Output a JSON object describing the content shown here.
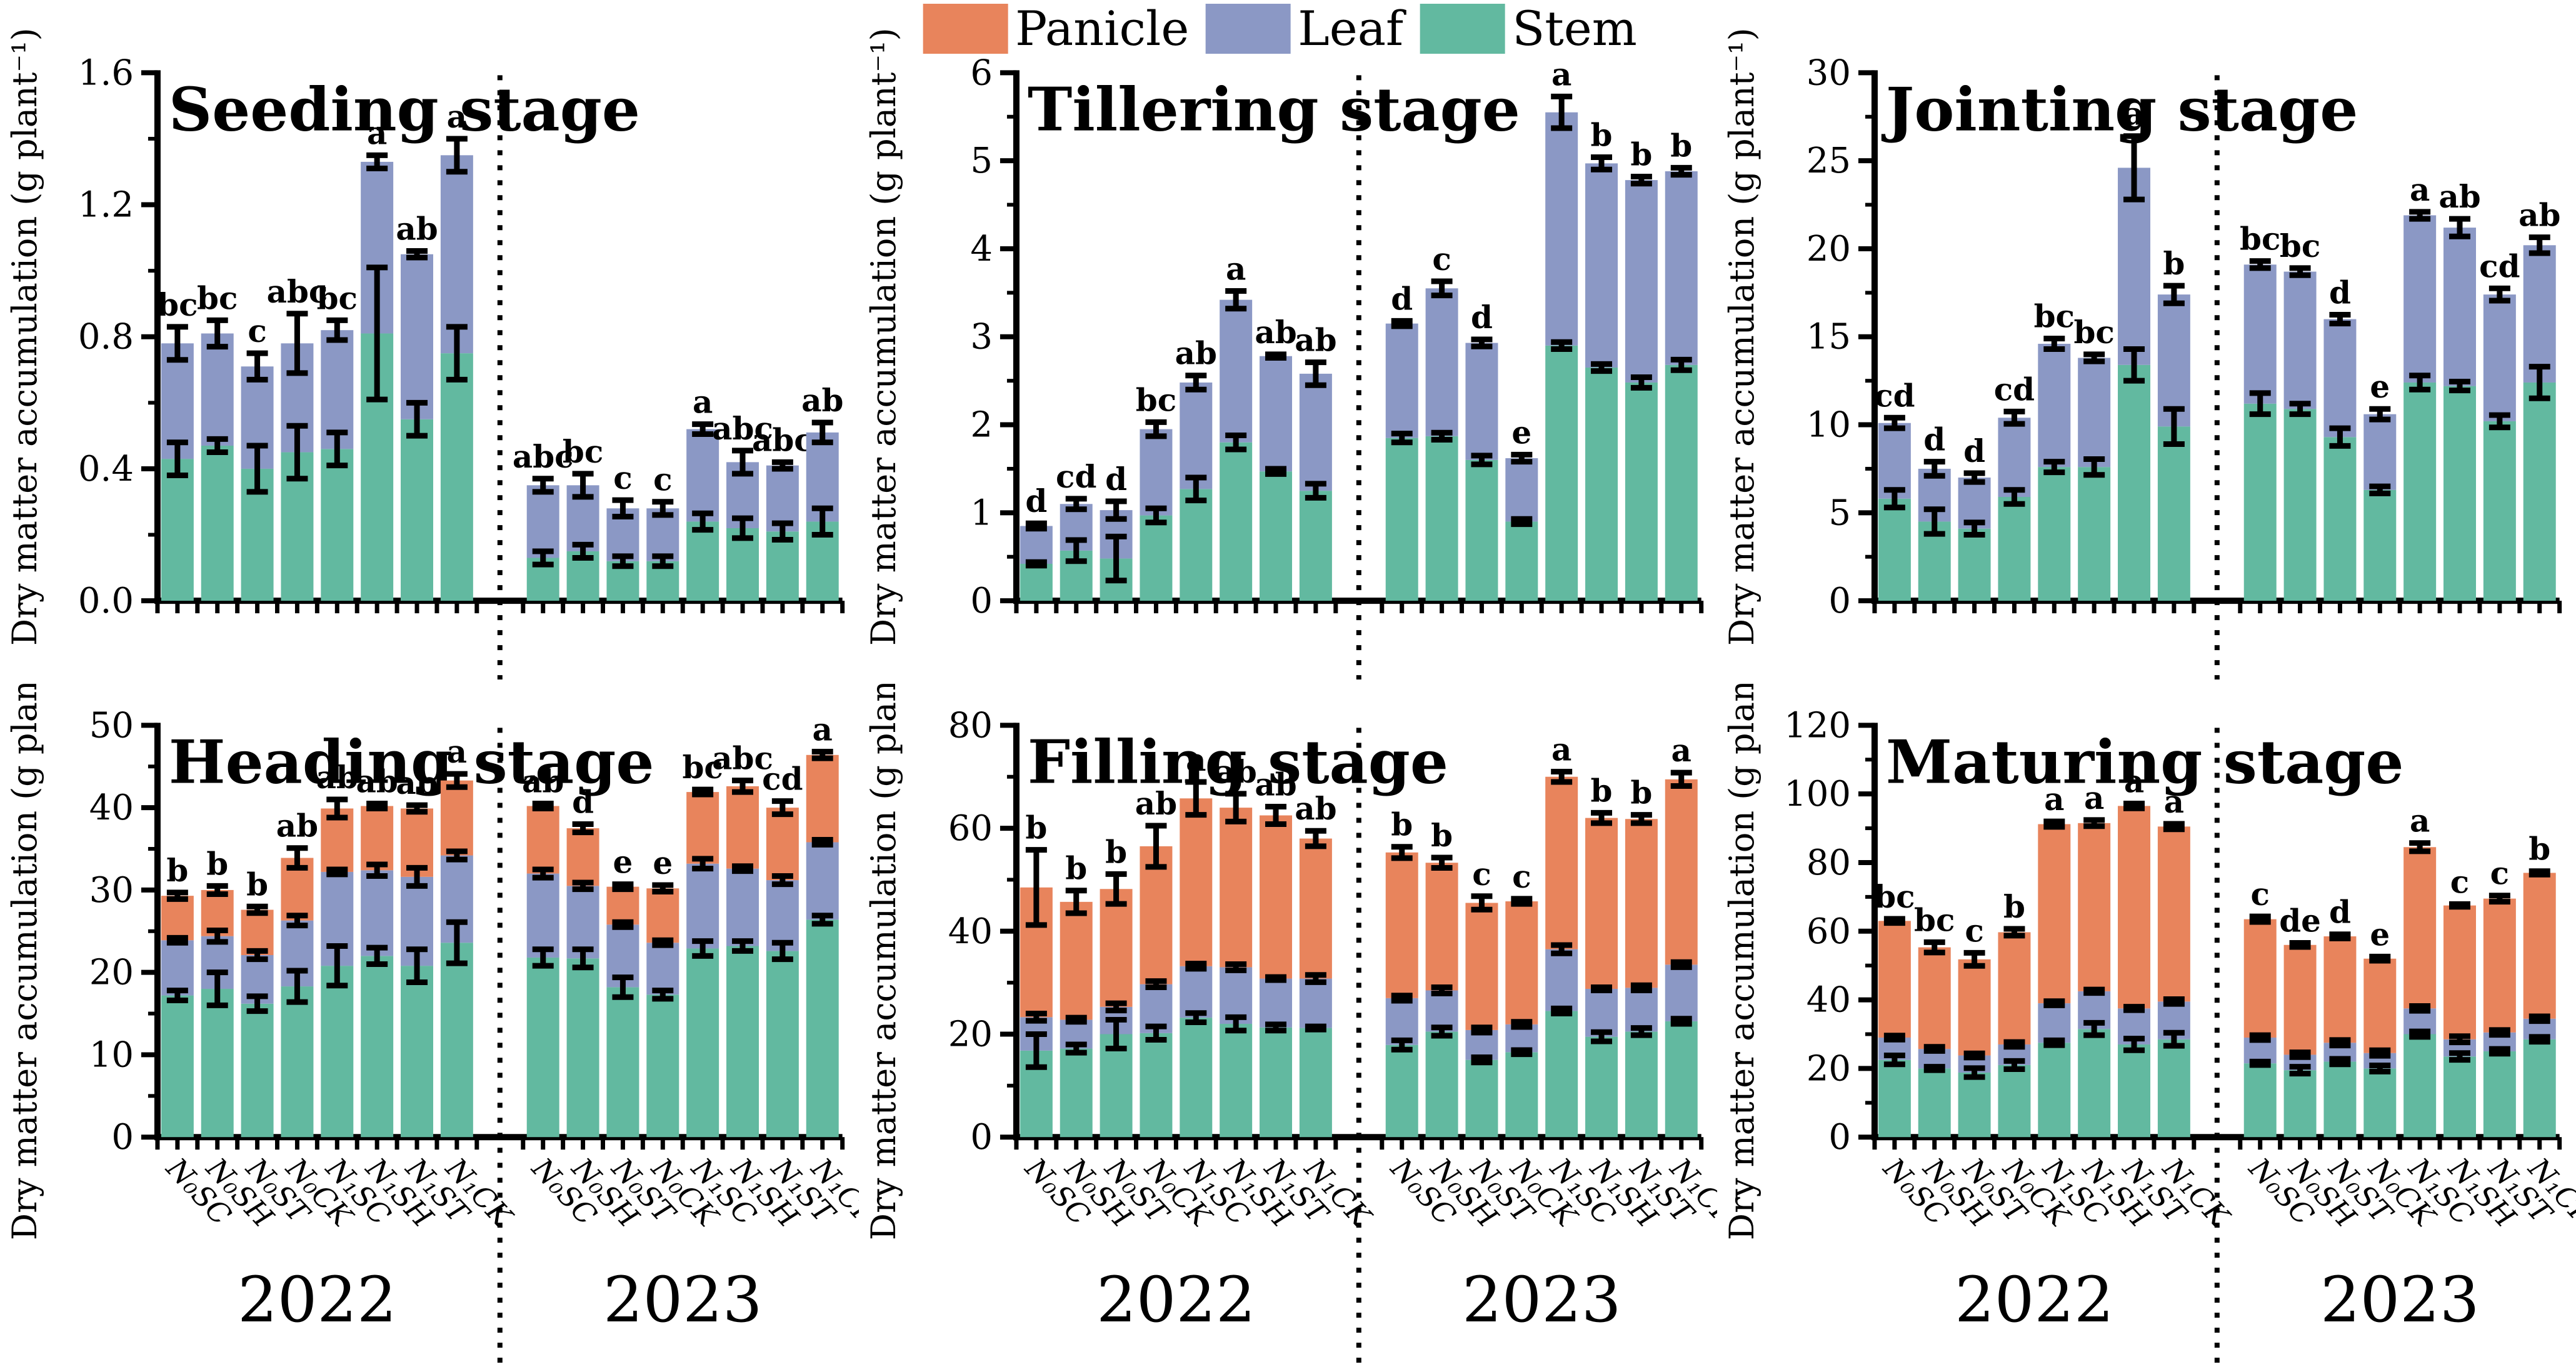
{
  "legend": {
    "items": [
      {
        "name": "panicle",
        "label": "Panicle",
        "color": "#E8845C"
      },
      {
        "name": "leaf",
        "label": "Leaf",
        "color": "#8B98C5"
      },
      {
        "name": "stem",
        "label": "Stem",
        "color": "#62B9A0"
      }
    ]
  },
  "ylabel": "Dry matter accumulation (g plant⁻¹)",
  "x_labels": [
    "N₀SC",
    "N₀SH",
    "N₀ST",
    "N₀CK",
    "N₁SC",
    "N₁SH",
    "N₁ST",
    "N₁CK"
  ],
  "years": [
    "2022",
    "2023"
  ],
  "error_bar_color": "#000000",
  "bar_fields": [
    "stem",
    "leaf",
    "panicle",
    "letter",
    "err_stem",
    "err_leaf",
    "err_total"
  ],
  "chart_data": [
    {
      "type": "stacked-bar",
      "title": "Seeding stage",
      "ylim": [
        0,
        1.6
      ],
      "ytick_major": 0.4,
      "ytick_minor": 0.2,
      "ydecimals": 1,
      "groups": [
        {
          "year": "2022",
          "bars": [
            [
              0.43,
              0.35,
              0,
              "bc",
              0.05,
              0,
              0.05
            ],
            [
              0.47,
              0.34,
              0,
              "bc",
              0.02,
              0,
              0.04
            ],
            [
              0.4,
              0.31,
              0,
              "c",
              0.07,
              0,
              0.04
            ],
            [
              0.45,
              0.33,
              0,
              "abc",
              0.08,
              0,
              0.09
            ],
            [
              0.46,
              0.36,
              0,
              "bc",
              0.05,
              0,
              0.03
            ],
            [
              0.81,
              0.52,
              0,
              "a",
              0.2,
              0,
              0.02
            ],
            [
              0.55,
              0.5,
              0,
              "ab",
              0.05,
              0,
              0.01
            ],
            [
              0.75,
              0.6,
              0,
              "a",
              0.08,
              0,
              0.05
            ]
          ]
        },
        {
          "year": "2023",
          "bars": [
            [
              0.13,
              0.22,
              0,
              "abc",
              0.02,
              0,
              0.02
            ],
            [
              0.15,
              0.2,
              0,
              "bc",
              0.02,
              0,
              0.035
            ],
            [
              0.12,
              0.16,
              0,
              "c",
              0.015,
              0,
              0.025
            ],
            [
              0.12,
              0.16,
              0,
              "c",
              0.015,
              0,
              0.02
            ],
            [
              0.24,
              0.28,
              0,
              "a",
              0.025,
              0,
              0.015
            ],
            [
              0.22,
              0.2,
              0,
              "abc",
              0.03,
              0,
              0.035
            ],
            [
              0.21,
              0.2,
              0,
              "abc",
              0.025,
              0,
              0.01
            ],
            [
              0.24,
              0.27,
              0,
              "ab",
              0.04,
              0,
              0.03
            ]
          ]
        }
      ]
    },
    {
      "type": "stacked-bar",
      "title": "Tillering stage",
      "ylim": [
        0,
        6
      ],
      "ytick_major": 1,
      "ytick_minor": 0.5,
      "ydecimals": 0,
      "groups": [
        {
          "year": "2022",
          "bars": [
            [
              0.42,
              0.43,
              0,
              "d",
              0.02,
              0,
              0.03
            ],
            [
              0.57,
              0.53,
              0,
              "cd",
              0.12,
              0,
              0.06
            ],
            [
              0.48,
              0.55,
              0,
              "d",
              0.25,
              0,
              0.1
            ],
            [
              0.97,
              0.98,
              0,
              "bc",
              0.08,
              0,
              0.08
            ],
            [
              1.27,
              1.21,
              0,
              "ab",
              0.13,
              0,
              0.08
            ],
            [
              1.8,
              1.62,
              0,
              "a",
              0.08,
              0,
              0.1
            ],
            [
              1.47,
              1.31,
              0,
              "ab",
              0.03,
              0,
              0.02
            ],
            [
              1.25,
              1.33,
              0,
              "ab",
              0.08,
              0,
              0.13
            ]
          ]
        },
        {
          "year": "2023",
          "bars": [
            [
              1.85,
              1.3,
              0,
              "d",
              0.05,
              0,
              0.03
            ],
            [
              1.87,
              1.68,
              0,
              "c",
              0.04,
              0,
              0.08
            ],
            [
              1.6,
              1.33,
              0,
              "d",
              0.05,
              0,
              0.04
            ],
            [
              0.9,
              0.72,
              0,
              "e",
              0.03,
              0,
              0.04
            ],
            [
              2.9,
              2.65,
              0,
              "a",
              0.04,
              0,
              0.18
            ],
            [
              2.65,
              2.32,
              0,
              "b",
              0.04,
              0,
              0.07
            ],
            [
              2.48,
              2.3,
              0,
              "b",
              0.06,
              0,
              0.04
            ],
            [
              2.68,
              2.2,
              0,
              "b",
              0.06,
              0,
              0.04
            ]
          ]
        }
      ]
    },
    {
      "type": "stacked-bar",
      "title": "Jointing stage",
      "ylim": [
        0,
        30
      ],
      "ytick_major": 5,
      "ytick_minor": 2.5,
      "ydecimals": 0,
      "groups": [
        {
          "year": "2022",
          "bars": [
            [
              5.8,
              4.3,
              0,
              "cd",
              0.5,
              0,
              0.3
            ],
            [
              4.5,
              3.0,
              0,
              "d",
              0.7,
              0,
              0.4
            ],
            [
              4.1,
              2.9,
              0,
              "d",
              0.35,
              0,
              0.25
            ],
            [
              5.9,
              4.5,
              0,
              "cd",
              0.4,
              0,
              0.35
            ],
            [
              7.6,
              7.0,
              0,
              "bc",
              0.3,
              0,
              0.3
            ],
            [
              7.6,
              6.2,
              0,
              "bc",
              0.45,
              0,
              0.2
            ],
            [
              13.4,
              11.2,
              0,
              "a",
              0.9,
              0,
              1.8
            ],
            [
              9.9,
              7.5,
              0,
              "b",
              1.0,
              0,
              0.5
            ]
          ]
        },
        {
          "year": "2023",
          "bars": [
            [
              11.2,
              7.9,
              0,
              "bc",
              0.6,
              0,
              0.2
            ],
            [
              10.9,
              7.8,
              0,
              "bc",
              0.3,
              0,
              0.2
            ],
            [
              9.3,
              6.7,
              0,
              "d",
              0.5,
              0,
              0.25
            ],
            [
              6.3,
              4.3,
              0,
              "e",
              0.2,
              0,
              0.3
            ],
            [
              12.4,
              9.5,
              0,
              "a",
              0.4,
              0,
              0.2
            ],
            [
              12.2,
              9.0,
              0,
              "ab",
              0.25,
              0,
              0.5
            ],
            [
              10.2,
              7.2,
              0,
              "cd",
              0.35,
              0,
              0.35
            ],
            [
              12.4,
              7.8,
              0,
              "ab",
              0.9,
              0,
              0.45
            ]
          ]
        }
      ]
    },
    {
      "type": "stacked-bar",
      "title": "Heading stage",
      "ylim": [
        0,
        50
      ],
      "ytick_major": 10,
      "ytick_minor": 5,
      "ydecimals": 0,
      "groups": [
        {
          "year": "2022",
          "bars": [
            [
              17.2,
              6.7,
              5.4,
              "b",
              0.6,
              0.3,
              0.4
            ],
            [
              18.0,
              6.4,
              5.6,
              "b",
              2.0,
              0.7,
              0.5
            ],
            [
              16.2,
              5.9,
              5.5,
              "b",
              0.9,
              0.5,
              0.4
            ],
            [
              18.3,
              8.0,
              7.6,
              "ab",
              1.9,
              0.6,
              1.2
            ],
            [
              20.8,
              11.4,
              7.7,
              "ab",
              2.4,
              0.3,
              1.1
            ],
            [
              22.0,
              10.4,
              7.8,
              "ab",
              1.0,
              0.7,
              0.3
            ],
            [
              20.8,
              10.8,
              8.3,
              "ab",
              2.0,
              1.1,
              0.4
            ],
            [
              23.6,
              10.6,
              9.1,
              "a",
              2.5,
              0.5,
              0.8
            ]
          ]
        },
        {
          "year": "2023",
          "bars": [
            [
              21.8,
              10.2,
              8.2,
              "ab",
              1.0,
              0.5,
              0.3
            ],
            [
              21.7,
              8.8,
              7.0,
              "d",
              1.1,
              0.4,
              0.5
            ],
            [
              18.2,
              7.6,
              4.6,
              "e",
              1.2,
              0.3,
              0.3
            ],
            [
              17.3,
              6.3,
              6.6,
              "e",
              0.5,
              0.3,
              0.4
            ],
            [
              22.9,
              10.3,
              8.7,
              "bc",
              0.9,
              0.6,
              0.3
            ],
            [
              23.2,
              9.4,
              10.0,
              "abc",
              0.6,
              0.3,
              0.7
            ],
            [
              22.6,
              8.6,
              8.8,
              "cd",
              1.0,
              0.5,
              0.8
            ],
            [
              26.4,
              9.4,
              10.6,
              "a",
              0.5,
              0.3,
              0.4
            ]
          ]
        }
      ]
    },
    {
      "type": "stacked-bar",
      "title": "Filling stage",
      "ylim": [
        0,
        80
      ],
      "ytick_major": 20,
      "ytick_minor": 10,
      "ydecimals": 0,
      "groups": [
        {
          "year": "2022",
          "bars": [
            [
              16.8,
              6.5,
              25.2,
              "b",
              3.2,
              0.7,
              7.3
            ],
            [
              17.2,
              5.6,
              22.9,
              "b",
              0.8,
              0.4,
              2.2
            ],
            [
              20.0,
              5.3,
              22.9,
              "b",
              2.8,
              0.7,
              2.9
            ],
            [
              20.2,
              9.5,
              26.8,
              "ab",
              1.3,
              0.6,
              4.0
            ],
            [
              23.2,
              10.0,
              32.6,
              "a",
              0.9,
              0.5,
              3.2
            ],
            [
              22.0,
              11.0,
              31.0,
              "ab",
              1.3,
              0.6,
              2.7
            ],
            [
              21.3,
              9.5,
              31.7,
              "ab",
              0.6,
              0.3,
              1.7
            ],
            [
              21.2,
              9.6,
              27.2,
              "ab",
              0.3,
              0.7,
              1.5
            ]
          ]
        },
        {
          "year": "2023",
          "bars": [
            [
              17.9,
              9.1,
              28.3,
              "b",
              0.9,
              0.5,
              1.1
            ],
            [
              20.5,
              8.0,
              24.8,
              "b",
              0.8,
              0.6,
              1.0
            ],
            [
              15.0,
              5.8,
              24.7,
              "c",
              0.5,
              0.5,
              1.3
            ],
            [
              16.5,
              5.4,
              23.9,
              "c",
              0.4,
              0.5,
              0.5
            ],
            [
              24.5,
              12.0,
              33.5,
              "a",
              0.5,
              0.8,
              1.0
            ],
            [
              19.5,
              9.3,
              33.2,
              "b",
              0.9,
              0.3,
              1.0
            ],
            [
              20.5,
              8.5,
              32.8,
              "b",
              0.7,
              0.5,
              0.8
            ],
            [
              22.5,
              11.0,
              36.0,
              "a",
              0.5,
              0.5,
              1.3
            ]
          ]
        }
      ]
    },
    {
      "type": "stacked-bar",
      "title": "Maturing stage",
      "ylim": [
        0,
        120
      ],
      "ytick_major": 20,
      "ytick_minor": 10,
      "ydecimals": 0,
      "groups": [
        {
          "year": "2022",
          "bars": [
            [
              22.5,
              6.5,
              34.0,
              "bc",
              1.3,
              0.6,
              0.6
            ],
            [
              20.0,
              5.7,
              29.6,
              "bc",
              0.5,
              0.6,
              1.5
            ],
            [
              18.8,
              5.0,
              28.0,
              "c",
              1.3,
              0.6,
              1.9
            ],
            [
              21.0,
              6.0,
              32.7,
              "b",
              1.2,
              0.7,
              1.0
            ],
            [
              27.5,
              11.5,
              52.2,
              "a",
              0.7,
              0.6,
              0.8
            ],
            [
              31.5,
              11.0,
              49.0,
              "a",
              1.8,
              0.5,
              0.9
            ],
            [
              27.0,
              10.5,
              59.0,
              "a",
              1.7,
              0.5,
              0.7
            ],
            [
              28.5,
              11.0,
              51.0,
              "a",
              1.9,
              0.7,
              0.8
            ]
          ]
        },
        {
          "year": "2023",
          "bars": [
            [
              21.5,
              7.5,
              34.5,
              "c",
              0.5,
              0.7,
              0.8
            ],
            [
              19.5,
              4.5,
              32.0,
              "de",
              1.0,
              0.7,
              0.6
            ],
            [
              22.0,
              5.5,
              31.0,
              "d",
              0.8,
              0.8,
              0.6
            ],
            [
              20.0,
              4.5,
              27.5,
              "e",
              0.9,
              0.8,
              0.6
            ],
            [
              30.0,
              7.5,
              47.0,
              "a",
              0.8,
              0.7,
              1.2
            ],
            [
              23.5,
              5.0,
              39.0,
              "c",
              1.0,
              0.9,
              0.4
            ],
            [
              25.0,
              5.5,
              39.0,
              "c",
              0.7,
              0.7,
              0.9
            ],
            [
              28.5,
              6.0,
              42.5,
              "b",
              0.7,
              0.7,
              0.5
            ]
          ]
        }
      ]
    }
  ]
}
